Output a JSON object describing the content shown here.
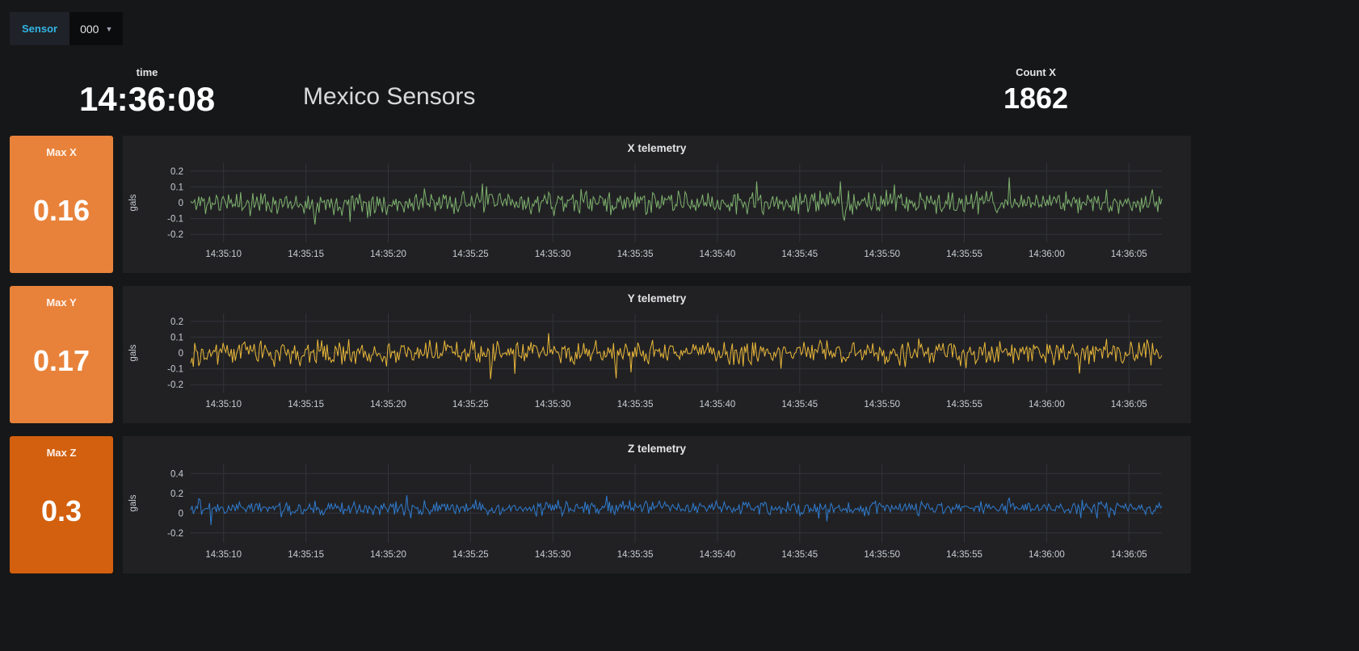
{
  "variable_bar": {
    "label": "Sensor",
    "value": "000",
    "caret_icon": "▼"
  },
  "header": {
    "time_panel": {
      "label": "time",
      "value": "14:36:08"
    },
    "dashboard_title": "Mexico Sensors",
    "count_panel": {
      "label": "Count X",
      "value": "1862"
    }
  },
  "stat_panels": [
    {
      "label": "Max X",
      "value": "0.16",
      "bg": "#e8823a"
    },
    {
      "label": "Max Y",
      "value": "0.17",
      "bg": "#e8823a"
    },
    {
      "label": "Max Z",
      "value": "0.3",
      "bg": "#d2600e"
    }
  ],
  "colors": {
    "background": "#161719",
    "panel": "#212124",
    "grid": "#323439",
    "axis_text": "#c7ccd2",
    "title_text": "#e3e4e6",
    "accent_cyan": "#33b5e5"
  },
  "chart_data": [
    {
      "type": "line",
      "title": "X telemetry",
      "ylabel": "gals",
      "color": "#7eb26d",
      "ylim": [
        -0.25,
        0.25
      ],
      "yticks": [
        0.2,
        0.1,
        0,
        -0.1,
        -0.2
      ],
      "xtick_labels": [
        "14:35:10",
        "14:35:15",
        "14:35:20",
        "14:35:25",
        "14:35:30",
        "14:35:35",
        "14:35:40",
        "14:35:45",
        "14:35:50",
        "14:35:55",
        "14:36:00",
        "14:36:05"
      ],
      "legend": "off",
      "grid": "on",
      "series": [
        {
          "name": "X",
          "description": "high-frequency sensor noise centered at 0 gals; typical ±0.08, peak ≈ ±0.16 (matches Max X = 0.16)"
        }
      ],
      "render": {
        "mean": 0,
        "sigma": 0.105,
        "spike_prob": 0.04,
        "spike_gain": 2.0,
        "clamp": [
          -0.16,
          0.16
        ],
        "seed": 11,
        "points": 720
      }
    },
    {
      "type": "line",
      "title": "Y telemetry",
      "ylabel": "gals",
      "color": "#eab839",
      "ylim": [
        -0.25,
        0.25
      ],
      "yticks": [
        0.2,
        0.1,
        0,
        -0.1,
        -0.2
      ],
      "xtick_labels": [
        "14:35:10",
        "14:35:15",
        "14:35:20",
        "14:35:25",
        "14:35:30",
        "14:35:35",
        "14:35:40",
        "14:35:45",
        "14:35:50",
        "14:35:55",
        "14:36:00",
        "14:36:05"
      ],
      "legend": "off",
      "grid": "on",
      "series": [
        {
          "name": "Y",
          "description": "high-frequency sensor noise centered at 0 gals; typical ±0.09, peak ≈ ±0.17 (matches Max Y = 0.17)"
        }
      ],
      "render": {
        "mean": 0,
        "sigma": 0.115,
        "spike_prob": 0.045,
        "spike_gain": 2.0,
        "clamp": [
          -0.17,
          0.17
        ],
        "seed": 29,
        "points": 720
      }
    },
    {
      "type": "line",
      "title": "Z telemetry",
      "ylabel": "gals",
      "color": "#2f7cd0",
      "ylim": [
        -0.3,
        0.5
      ],
      "yticks": [
        0.4,
        0.2,
        0,
        -0.2
      ],
      "xtick_labels": [
        "14:35:10",
        "14:35:15",
        "14:35:20",
        "14:35:25",
        "14:35:30",
        "14:35:35",
        "14:35:40",
        "14:35:45",
        "14:35:50",
        "14:35:55",
        "14:36:00",
        "14:36:05"
      ],
      "legend": "off",
      "grid": "on",
      "series": [
        {
          "name": "Z",
          "description": "high-frequency sensor noise centered near +0.05 gals; typical 0 to 0.15, spikes to ≈ 0.3 (matches Max Z = 0.3), dips to ≈ -0.2"
        }
      ],
      "render": {
        "mean": 0.05,
        "sigma": 0.1,
        "spike_prob": 0.04,
        "spike_gain": 2.4,
        "clamp": [
          -0.22,
          0.3
        ],
        "seed": 47,
        "points": 720
      }
    }
  ]
}
